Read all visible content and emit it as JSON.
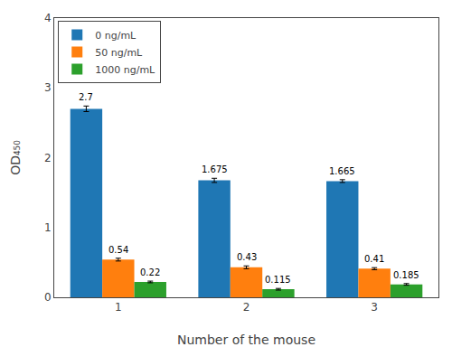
{
  "chart_data": {
    "type": "bar",
    "xlabel": "Number of the mouse",
    "ylabel": "OD₄₅₀",
    "categories": [
      "1",
      "2",
      "3"
    ],
    "series": [
      {
        "name": "0 ng/mL",
        "values": [
          2.7,
          1.675,
          1.665
        ],
        "errors": [
          0.04,
          0.03,
          0.02
        ]
      },
      {
        "name": "50 ng/mL",
        "values": [
          0.54,
          0.43,
          0.41
        ],
        "errors": [
          0.02,
          0.02,
          0.015
        ]
      },
      {
        "name": "1000 ng/mL",
        "values": [
          0.22,
          0.115,
          0.185
        ],
        "errors": [
          0.012,
          0.012,
          0.012
        ]
      }
    ],
    "ylim": [
      0,
      4
    ],
    "yticks": [
      0,
      1,
      2,
      3,
      4
    ],
    "legend": "upper left",
    "grid": false,
    "data_labels": true
  }
}
